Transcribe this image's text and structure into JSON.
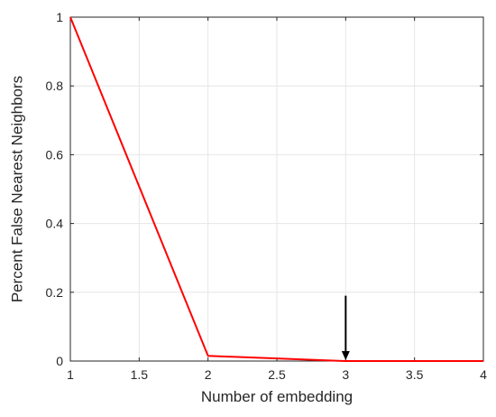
{
  "chart_data": {
    "type": "line",
    "title": "",
    "xlabel": "Number of embedding",
    "ylabel": "Percent False Nearest Neighbors",
    "xlim": [
      1,
      4
    ],
    "ylim": [
      0,
      1
    ],
    "xticks": [
      "1",
      "1.5",
      "2",
      "2.5",
      "3",
      "3.5",
      "4"
    ],
    "yticks": [
      "0",
      "0.2",
      "0.4",
      "0.6",
      "0.8",
      "1"
    ],
    "grid": true,
    "legend": "none",
    "series": [
      {
        "color": "#ff0000",
        "x": [
          1,
          2,
          3,
          4
        ],
        "y": [
          1.0,
          0.015,
          0.0,
          0.0
        ]
      }
    ],
    "annotations": [
      {
        "type": "arrow",
        "x": 3,
        "y_from": 0.19,
        "y_to": 0.0,
        "color": "#000000"
      }
    ]
  }
}
